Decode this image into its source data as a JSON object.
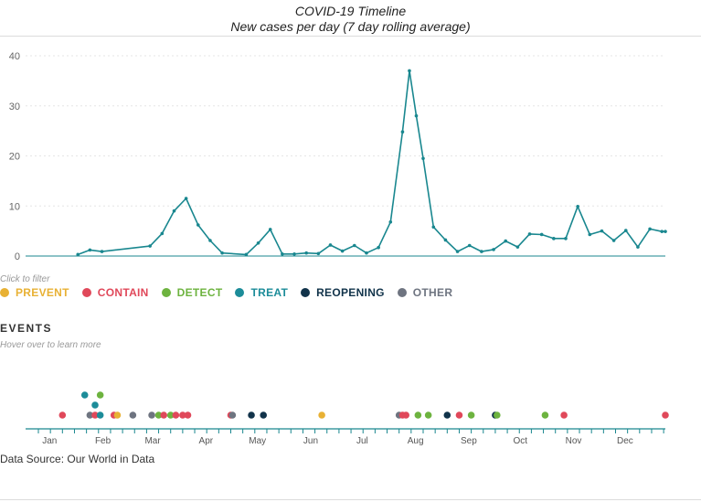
{
  "header": {
    "title": "COVID-19 Timeline",
    "subtitle": "New cases per day (7 day rolling average)"
  },
  "chart_data": {
    "type": "line",
    "title": "COVID-19 Timeline",
    "subtitle": "New cases per day (7 day rolling average)",
    "ylim": [
      0,
      40
    ],
    "yticks": [
      "0",
      "10",
      "20",
      "30",
      "40"
    ],
    "grid": true,
    "color": "#19878f",
    "x_start": "2020-01-01",
    "x_end": "2020-12-31",
    "series": [
      {
        "x": [
          "2020-01-24",
          "2020-01-31",
          "2020-02-07",
          "2020-03-06",
          "2020-03-13",
          "2020-03-20",
          "2020-03-27",
          "2020-04-03",
          "2020-04-10",
          "2020-04-17",
          "2020-05-01",
          "2020-05-08",
          "2020-05-15",
          "2020-05-22",
          "2020-05-29",
          "2020-06-05",
          "2020-06-12",
          "2020-06-19",
          "2020-06-26",
          "2020-07-03",
          "2020-07-10",
          "2020-07-17",
          "2020-07-24",
          "2020-07-31",
          "2020-08-04",
          "2020-08-08",
          "2020-08-12",
          "2020-08-18",
          "2020-08-25",
          "2020-09-01",
          "2020-09-08",
          "2020-09-15",
          "2020-09-22",
          "2020-09-29",
          "2020-10-06",
          "2020-10-13",
          "2020-10-20",
          "2020-10-27",
          "2020-11-03",
          "2020-11-10",
          "2020-11-17",
          "2020-11-24",
          "2020-12-01",
          "2020-12-08",
          "2020-12-15",
          "2020-12-22",
          "2020-12-29",
          "2020-12-31"
        ],
        "values": [
          0.3,
          1.2,
          0.9,
          2.0,
          4.5,
          9.0,
          11.5,
          6.2,
          3.1,
          0.6,
          0.3,
          2.6,
          5.3,
          0.4,
          0.4,
          0.6,
          0.5,
          2.2,
          1.0,
          2.1,
          0.6,
          1.7,
          6.8,
          24.8,
          37.0,
          28.0,
          19.5,
          5.8,
          3.2,
          0.9,
          2.1,
          0.9,
          1.3,
          3.0,
          1.8,
          4.4,
          4.3,
          3.5,
          3.5,
          9.9,
          4.3,
          5.0,
          3.1,
          5.1,
          1.8,
          5.4,
          4.9,
          4.9
        ]
      }
    ]
  },
  "filters": {
    "hint": "Click to filter",
    "items": [
      {
        "label": "PREVENT",
        "color": "#e8b134"
      },
      {
        "label": "CONTAIN",
        "color": "#e0485a"
      },
      {
        "label": "DETECT",
        "color": "#6db33f"
      },
      {
        "label": "TREAT",
        "color": "#1c8c99"
      },
      {
        "label": "REOPENING",
        "color": "#11334a"
      },
      {
        "label": "OTHER",
        "color": "#6e7480"
      }
    ]
  },
  "events": {
    "title": "EVENTS",
    "hint": "Hover over to learn more",
    "months": [
      "Jan",
      "Feb",
      "Mar",
      "Apr",
      "May",
      "Jun",
      "Jul",
      "Aug",
      "Sep",
      "Oct",
      "Nov",
      "Dec"
    ],
    "items": [
      {
        "date": "2020-01-15",
        "category": "CONTAIN",
        "row": 0
      },
      {
        "date": "2020-01-31",
        "category": "OTHER",
        "row": 0
      },
      {
        "date": "2020-02-03",
        "category": "CONTAIN",
        "row": 0
      },
      {
        "date": "2020-02-06",
        "category": "TREAT",
        "row": 0
      },
      {
        "date": "2020-02-03",
        "category": "TREAT",
        "row": 1
      },
      {
        "date": "2020-01-28",
        "category": "TREAT",
        "row": 2
      },
      {
        "date": "2020-02-06",
        "category": "DETECT",
        "row": 2
      },
      {
        "date": "2020-02-14",
        "category": "CONTAIN",
        "row": 0
      },
      {
        "date": "2020-02-16",
        "category": "PREVENT",
        "row": 0
      },
      {
        "date": "2020-02-25",
        "category": "OTHER",
        "row": 0
      },
      {
        "date": "2020-03-07",
        "category": "OTHER",
        "row": 0
      },
      {
        "date": "2020-03-11",
        "category": "DETECT",
        "row": 0
      },
      {
        "date": "2020-03-14",
        "category": "CONTAIN",
        "row": 0
      },
      {
        "date": "2020-03-18",
        "category": "DETECT",
        "row": 0
      },
      {
        "date": "2020-03-21",
        "category": "CONTAIN",
        "row": 0
      },
      {
        "date": "2020-03-25",
        "category": "CONTAIN",
        "row": 0
      },
      {
        "date": "2020-03-28",
        "category": "CONTAIN",
        "row": 0
      },
      {
        "date": "2020-04-22",
        "category": "CONTAIN",
        "row": 0
      },
      {
        "date": "2020-04-23",
        "category": "OTHER",
        "row": 0
      },
      {
        "date": "2020-05-04",
        "category": "REOPENING",
        "row": 0
      },
      {
        "date": "2020-05-11",
        "category": "REOPENING",
        "row": 0
      },
      {
        "date": "2020-06-14",
        "category": "PREVENT",
        "row": 0
      },
      {
        "date": "2020-07-29",
        "category": "OTHER",
        "row": 0
      },
      {
        "date": "2020-07-31",
        "category": "CONTAIN",
        "row": 0
      },
      {
        "date": "2020-08-02",
        "category": "CONTAIN",
        "row": 0
      },
      {
        "date": "2020-08-09",
        "category": "DETECT",
        "row": 0
      },
      {
        "date": "2020-08-15",
        "category": "DETECT",
        "row": 0
      },
      {
        "date": "2020-08-26",
        "category": "REOPENING",
        "row": 0
      },
      {
        "date": "2020-09-02",
        "category": "CONTAIN",
        "row": 0
      },
      {
        "date": "2020-09-09",
        "category": "DETECT",
        "row": 0
      },
      {
        "date": "2020-09-23",
        "category": "REOPENING",
        "row": 0
      },
      {
        "date": "2020-09-24",
        "category": "DETECT",
        "row": 0
      },
      {
        "date": "2020-10-22",
        "category": "DETECT",
        "row": 0
      },
      {
        "date": "2020-11-02",
        "category": "CONTAIN",
        "row": 0
      },
      {
        "date": "2020-12-31",
        "category": "CONTAIN",
        "row": 0
      }
    ]
  },
  "footer": {
    "source": "Data Source: Our World in Data"
  }
}
